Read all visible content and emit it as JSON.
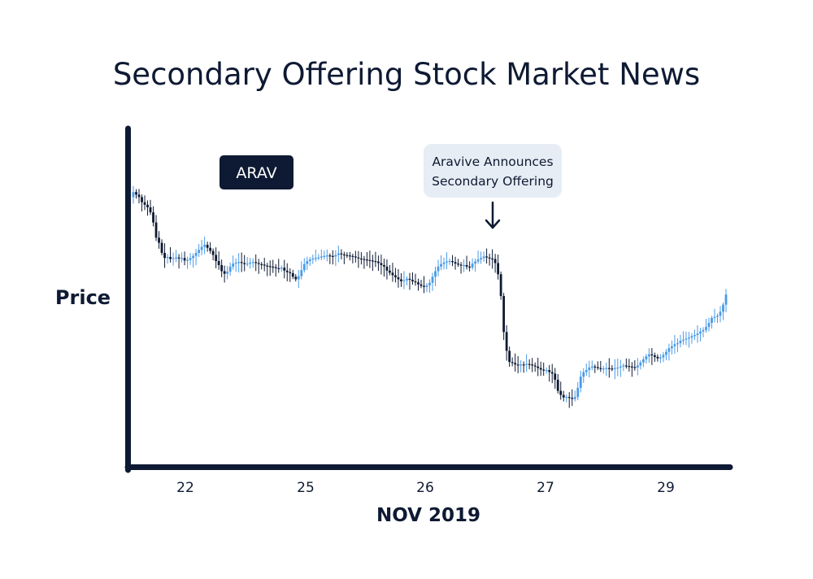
{
  "chart_data": {
    "type": "candlestick",
    "title": "Secondary Offering Stock Market News",
    "ylabel": "Price",
    "xlabel": "NOV 2019",
    "ticker": "ARAV",
    "x_ticks": [
      "22",
      "25",
      "26",
      "27",
      "29"
    ],
    "annotation": {
      "lines": [
        "Aravive Announces",
        "Secondary Offering"
      ],
      "at_index": 148
    },
    "colors": {
      "up": "#4a9be8",
      "down": "#0e1a33",
      "axis": "#0e1a33",
      "callout_bg": "#e6edf4"
    },
    "series_close": [
      100,
      99.5,
      99,
      98,
      97.5,
      97,
      96,
      94,
      91,
      90,
      88,
      87,
      87.2,
      86.8,
      87,
      87.1,
      86.9,
      87,
      86.5,
      86.6,
      87,
      87.4,
      88,
      88.6,
      89.2,
      89.6,
      89,
      88.4,
      87.6,
      86.4,
      85.6,
      84.4,
      83.9,
      84.3,
      85.3,
      85.9,
      86.1,
      86.2,
      86,
      85.8,
      85.9,
      86.1,
      86.2,
      86,
      85.8,
      85.7,
      85.5,
      85.4,
      85.3,
      85.2,
      85,
      84.9,
      85.1,
      84.5,
      84.2,
      84,
      83.3,
      82.8,
      83.4,
      84.6,
      85.8,
      86.4,
      86.7,
      86.9,
      87,
      87.1,
      87.3,
      87.4,
      87.5,
      87.4,
      87.3,
      87.6,
      87.9,
      87.7,
      87.6,
      87.5,
      87.4,
      87.3,
      87.1,
      86.9,
      86.8,
      86.7,
      86.6,
      86.5,
      86.4,
      86.3,
      86,
      85.6,
      85.3,
      84.5,
      84.1,
      83.6,
      83.2,
      82.8,
      82.4,
      82.6,
      82.9,
      82.7,
      82.4,
      82.2,
      81.8,
      81.5,
      81.3,
      81.6,
      82.1,
      83.3,
      84.4,
      85.3,
      85.8,
      86.1,
      86.3,
      86.4,
      86.2,
      85.9,
      85.7,
      85.5,
      85.6,
      85.3,
      85.1,
      85.9,
      86.3,
      86.7,
      87,
      87.3,
      87.1,
      86.9,
      86.8,
      86,
      83.8,
      79.5,
      72.4,
      68.7,
      66.5,
      66.3,
      66,
      65.8,
      66,
      65.9,
      66.1,
      66,
      65.8,
      65.6,
      65.3,
      65,
      64.8,
      64.9,
      64.5,
      64.2,
      63,
      60.8,
      60,
      59.5,
      59.6,
      59.4,
      59.2,
      59.6,
      61.4,
      63.6,
      64.5,
      64.9,
      65.4,
      65.6,
      65.5,
      65.3,
      65.1,
      65.2,
      65.3,
      65.2,
      65.1,
      65.3,
      65.4,
      65.6,
      65.8,
      65.7,
      65.6,
      65.5,
      65.4,
      65.8,
      66.4,
      67,
      67.6,
      68,
      67.8,
      67.5,
      67.2,
      67.4,
      67.9,
      68.5,
      69.2,
      69.6,
      70,
      70.2,
      70.7,
      70.9,
      71.1,
      71.3,
      71.6,
      71.8,
      72.1,
      72.5,
      72.8,
      73.4,
      74.2,
      75.2,
      75.4,
      75.6,
      76.4,
      77.8,
      79.8
    ]
  }
}
